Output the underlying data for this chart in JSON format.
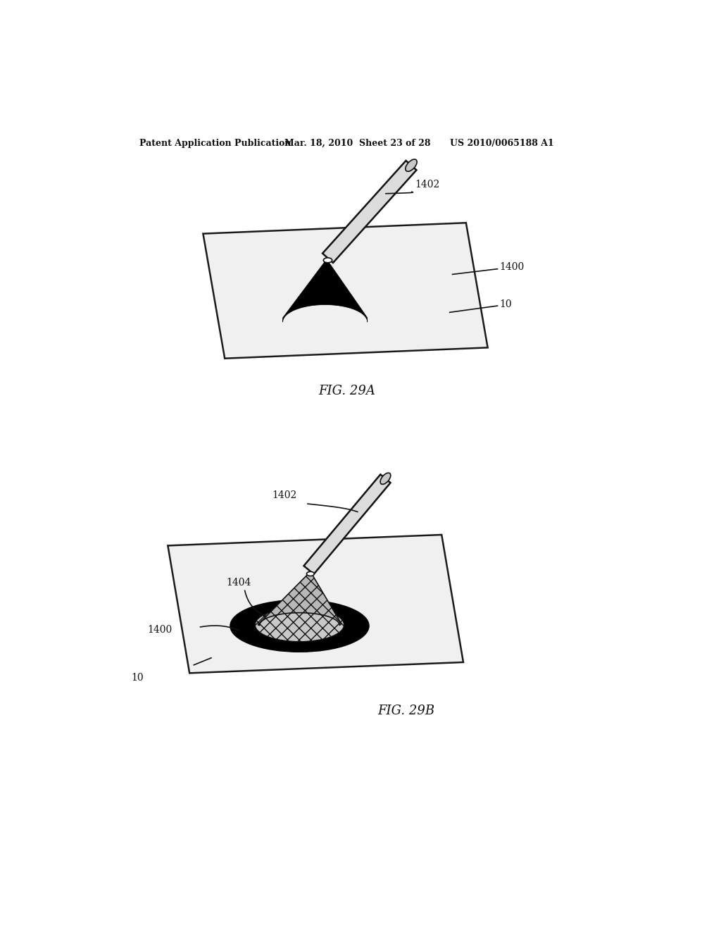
{
  "bg_color": "#ffffff",
  "header_left": "Patent Application Publication",
  "header_mid": "Mar. 18, 2010  Sheet 23 of 28",
  "header_right": "US 2010/0065188 A1",
  "fig_label_a": "FIG. 29A",
  "fig_label_b": "FIG. 29B",
  "labels": {
    "1402_a": "1402",
    "1400_a": "1400",
    "10_a": "10",
    "1402_b": "1402",
    "1404_b": "1404",
    "1400_b": "1400",
    "10_b": "10"
  }
}
